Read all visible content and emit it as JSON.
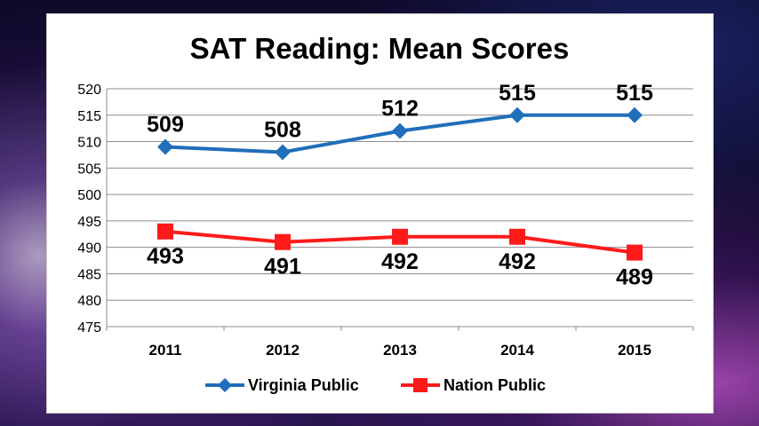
{
  "chart_data": {
    "type": "line",
    "title": "SAT Reading: Mean Scores",
    "categories": [
      "2011",
      "2012",
      "2013",
      "2014",
      "2015"
    ],
    "ylim": [
      475,
      520
    ],
    "yticks": [
      475,
      480,
      485,
      490,
      495,
      500,
      505,
      510,
      515,
      520
    ],
    "grid": true,
    "legend": "bottom",
    "series": [
      {
        "name": "Virginia Public",
        "values": [
          509,
          508,
          512,
          515,
          515
        ],
        "color": "#1f6fba",
        "marker": "diamond",
        "label_position": "above"
      },
      {
        "name": "Nation Public",
        "values": [
          493,
          491,
          492,
          492,
          489
        ],
        "color": "#ff1a1a",
        "marker": "square",
        "label_position": "below"
      }
    ]
  }
}
